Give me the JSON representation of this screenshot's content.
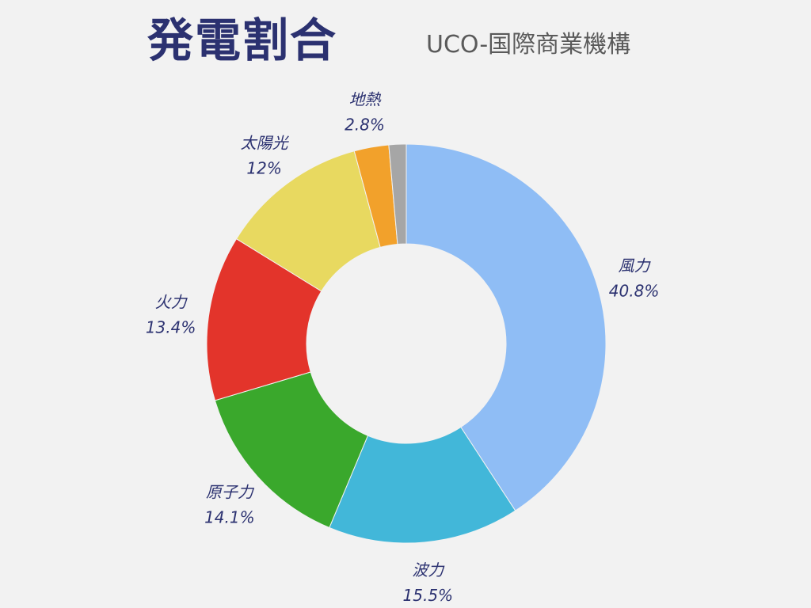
{
  "header": {
    "title": "発電割合",
    "subtitle": "UCO-国際商業機構"
  },
  "chart_data": {
    "type": "pie",
    "style": "donut",
    "title": "発電割合",
    "subtitle": "UCO-国際商業機構",
    "slices": [
      {
        "label": "風力",
        "value": 40.8,
        "value_text": "40.8%",
        "color": "#8fbdf5"
      },
      {
        "label": "波力",
        "value": 15.5,
        "value_text": "15.5%",
        "color": "#42b7d9"
      },
      {
        "label": "原子力",
        "value": 14.1,
        "value_text": "14.1%",
        "color": "#3aa82c"
      },
      {
        "label": "火力",
        "value": 13.4,
        "value_text": "13.4%",
        "color": "#e3342b"
      },
      {
        "label": "太陽光",
        "value": 12,
        "value_text": "12%",
        "color": "#e8d960"
      },
      {
        "label": "地熱",
        "value": 2.8,
        "value_text": "2.8%",
        "color": "#f2a12b"
      },
      {
        "label": "",
        "value": 1.4,
        "value_text": "",
        "color": "#a6a6a6"
      }
    ],
    "legend": "none"
  }
}
